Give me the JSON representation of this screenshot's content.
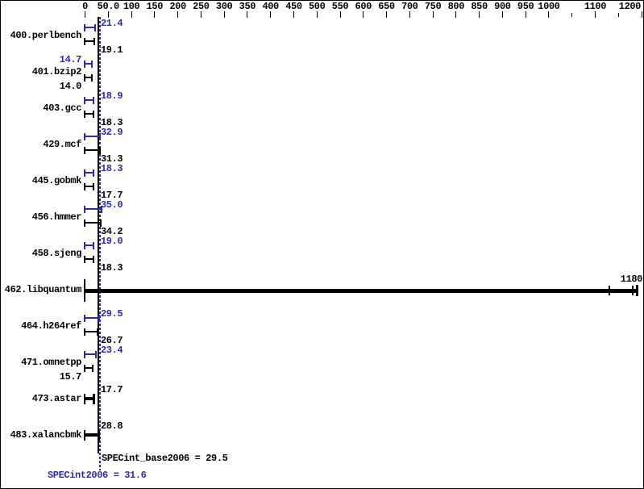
{
  "colors": {
    "peak_blue": "#2b2bad",
    "base_black": "#000000",
    "background": "#ffffff"
  },
  "chart_data": {
    "type": "bar",
    "orientation": "horizontal",
    "title": "",
    "xlabel": "",
    "ylabel": "",
    "xlim": [
      0,
      1200
    ],
    "grid": false,
    "legend_position": "none",
    "x_ticks": [
      {
        "v": 0,
        "label": "0"
      },
      {
        "v": 50,
        "label": "50.0"
      },
      {
        "v": 100,
        "label": "100"
      },
      {
        "v": 150,
        "label": "150"
      },
      {
        "v": 200,
        "label": "200"
      },
      {
        "v": 250,
        "label": "250"
      },
      {
        "v": 300,
        "label": "300"
      },
      {
        "v": 350,
        "label": "350"
      },
      {
        "v": 400,
        "label": "400"
      },
      {
        "v": 450,
        "label": "450"
      },
      {
        "v": 500,
        "label": "500"
      },
      {
        "v": 550,
        "label": "550"
      },
      {
        "v": 600,
        "label": "600"
      },
      {
        "v": 650,
        "label": "650"
      },
      {
        "v": 700,
        "label": "700"
      },
      {
        "v": 750,
        "label": "750"
      },
      {
        "v": 800,
        "label": "800"
      },
      {
        "v": 850,
        "label": "850"
      },
      {
        "v": 900,
        "label": "900"
      },
      {
        "v": 950,
        "label": "950"
      },
      {
        "v": 1000,
        "label": "1000"
      },
      {
        "v": 1050,
        "label": ""
      },
      {
        "v": 1100,
        "label": "1100"
      },
      {
        "v": 1150,
        "label": ""
      },
      {
        "v": 1200,
        "label": "1200"
      }
    ],
    "series": [
      {
        "name": "peak (SPECint2006)",
        "color_role": "peak_blue"
      },
      {
        "name": "base (SPECint_base2006)",
        "color_role": "base_black"
      }
    ],
    "benchmarks": [
      {
        "name": "400.perlbench",
        "peak": 21.4,
        "peak_label": "21.4",
        "base": 19.1,
        "base_label": "19.1",
        "peak_label_side": "right",
        "base_label_side": "right"
      },
      {
        "name": "401.bzip2",
        "peak": 14.7,
        "peak_label": "14.7",
        "base": 14.0,
        "base_label": "14.0",
        "peak_label_side": "left",
        "base_label_side": "left"
      },
      {
        "name": "403.gcc",
        "peak": 18.9,
        "peak_label": "18.9",
        "base": 18.3,
        "base_label": "18.3",
        "peak_label_side": "right",
        "base_label_side": "right"
      },
      {
        "name": "429.mcf",
        "peak": 32.9,
        "peak_label": "32.9",
        "base": 31.3,
        "base_label": "31.3",
        "peak_label_side": "right",
        "base_label_side": "right"
      },
      {
        "name": "445.gobmk",
        "peak": 18.3,
        "peak_label": "18.3",
        "base": 17.7,
        "base_label": "17.7",
        "peak_label_side": "right",
        "base_label_side": "right"
      },
      {
        "name": "456.hmmer",
        "peak": 35.0,
        "peak_label": "35.0",
        "base": 34.2,
        "base_label": "34.2",
        "peak_label_side": "right",
        "base_label_side": "right"
      },
      {
        "name": "458.sjeng",
        "peak": 19.0,
        "peak_label": "19.0",
        "base": 18.3,
        "base_label": "18.3",
        "peak_label_side": "right",
        "base_label_side": "right"
      },
      {
        "name": "462.libquantum",
        "merged": true,
        "value": 1180,
        "label": "1180",
        "label_side": "bar_end",
        "extra_run_tick_values": [
          1130,
          1190
        ]
      },
      {
        "name": "464.h264ref",
        "peak": 29.5,
        "peak_label": "29.5",
        "base": 26.7,
        "base_label": "26.7",
        "peak_label_side": "right",
        "base_label_side": "right"
      },
      {
        "name": "471.omnetpp",
        "peak": 23.4,
        "peak_label": "23.4",
        "base": 15.7,
        "base_label": "15.7",
        "peak_label_side": "right",
        "base_label_side": "left"
      },
      {
        "name": "473.astar",
        "merged": true,
        "value": 17.7,
        "label": "17.7",
        "label_side": "right"
      },
      {
        "name": "483.xalancbmk",
        "merged": true,
        "value": 28.8,
        "label": "28.8",
        "label_side": "right"
      }
    ],
    "summary": {
      "base_value": 29.5,
      "base_label": "SPECint_base2006 = 29.5",
      "peak_value": 31.6,
      "peak_label": "SPECint2006 = 31.6"
    }
  }
}
